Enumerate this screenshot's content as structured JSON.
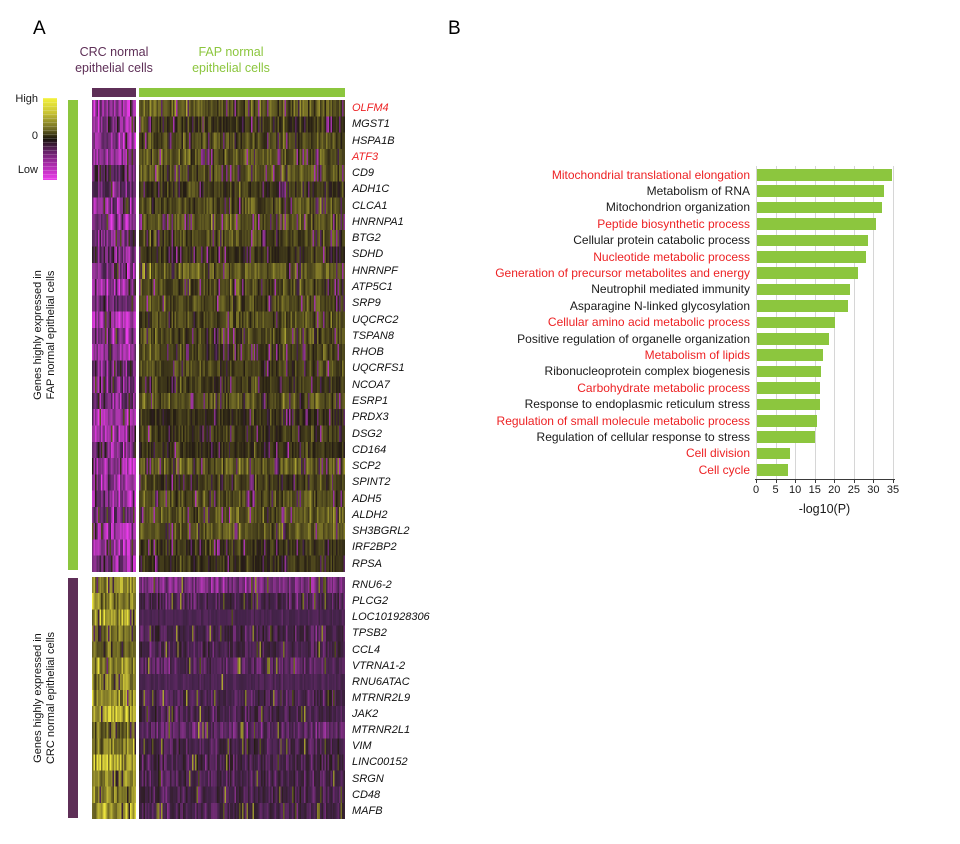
{
  "figure": {
    "panelA_label": "A",
    "panelB_label": "B"
  },
  "colors": {
    "green": "#8cc63e",
    "purple": "#5e2f57",
    "red_text": "#ed2224",
    "black_text": "#1a1a1a",
    "gridline": "#d6d6d6"
  },
  "chart_data": [
    {
      "type": "heatmap",
      "title": "Gene expression heatmap: CRC vs FAP normal epithelial cells",
      "column_groups": [
        {
          "label": "CRC normal\nepithelial cells",
          "color": "#5e2f57"
        },
        {
          "label": "FAP normal\nepithelial cells",
          "color": "#8cc63e"
        }
      ],
      "colorscale": {
        "high_label": "High",
        "zero_label": "0",
        "low_label": "Low",
        "high_color": "#ece43e",
        "zero_color": "#241c13",
        "low_color": "#e93be9"
      },
      "row_groups": [
        {
          "side_label": "Genes highly expressed in\nFAP normal epithelial cells",
          "bar_color": "#8cc63e",
          "pattern": "low (magenta) in CRC columns, high (olive/yellow) in FAP columns",
          "genes": [
            {
              "name": "OLFM4",
              "red": true
            },
            {
              "name": "MGST1",
              "red": false
            },
            {
              "name": "HSPA1B",
              "red": false
            },
            {
              "name": "ATF3",
              "red": true
            },
            {
              "name": "CD9",
              "red": false
            },
            {
              "name": "ADH1C",
              "red": false
            },
            {
              "name": "CLCA1",
              "red": false
            },
            {
              "name": "HNRNPA1",
              "red": false
            },
            {
              "name": "BTG2",
              "red": false
            },
            {
              "name": "SDHD",
              "red": false
            },
            {
              "name": "HNRNPF",
              "red": false
            },
            {
              "name": "ATP5C1",
              "red": false
            },
            {
              "name": "SRP9",
              "red": false
            },
            {
              "name": "UQCRC2",
              "red": false
            },
            {
              "name": "TSPAN8",
              "red": false
            },
            {
              "name": "RHOB",
              "red": false
            },
            {
              "name": "UQCRFS1",
              "red": false
            },
            {
              "name": "NCOA7",
              "red": false
            },
            {
              "name": "ESRP1",
              "red": false
            },
            {
              "name": "PRDX3",
              "red": false
            },
            {
              "name": "DSG2",
              "red": false
            },
            {
              "name": "CD164",
              "red": false
            },
            {
              "name": "SCP2",
              "red": false
            },
            {
              "name": "SPINT2",
              "red": false
            },
            {
              "name": "ADH5",
              "red": false
            },
            {
              "name": "ALDH2",
              "red": false
            },
            {
              "name": "SH3BGRL2",
              "red": false
            },
            {
              "name": "IRF2BP2",
              "red": false
            },
            {
              "name": "RPSA",
              "red": false
            }
          ]
        },
        {
          "side_label": "Genes highly expressed in\nCRC normal epithelial cells",
          "bar_color": "#5e2f57",
          "pattern": "high (yellow) in CRC columns, low (dark purple) in FAP columns",
          "genes": [
            {
              "name": "RNU6-2",
              "red": false
            },
            {
              "name": "PLCG2",
              "red": false
            },
            {
              "name": "LOC101928306",
              "red": false
            },
            {
              "name": "TPSB2",
              "red": false
            },
            {
              "name": "CCL4",
              "red": false
            },
            {
              "name": "VTRNA1-2",
              "red": false
            },
            {
              "name": "RNU6ATAC",
              "red": false
            },
            {
              "name": "MTRNR2L9",
              "red": false
            },
            {
              "name": "JAK2",
              "red": false
            },
            {
              "name": "MTRNR2L1",
              "red": false
            },
            {
              "name": "VIM",
              "red": false
            },
            {
              "name": "LINC00152",
              "red": false
            },
            {
              "name": "SRGN",
              "red": false
            },
            {
              "name": "CD48",
              "red": false
            },
            {
              "name": "MAFB",
              "red": false
            }
          ]
        }
      ]
    },
    {
      "type": "bar",
      "orientation": "horizontal",
      "title": "",
      "xlabel": "-log10(P)",
      "xlim": [
        0,
        35
      ],
      "xticks": [
        0,
        5,
        10,
        15,
        20,
        25,
        30,
        35
      ],
      "grid": true,
      "bar_color": "#8cc63e",
      "categories": [
        "Mitochondrial translational elongation",
        "Metabolism of RNA",
        "Mitochondrion organization",
        "Peptide biosynthetic process",
        "Cellular protein catabolic process",
        "Nucleotide metabolic process",
        "Generation of precursor metabolites and energy",
        "Neutrophil mediated immunity",
        "Asparagine N-linked glycosylation",
        "Cellular amino acid metabolic process",
        "Positive regulation of organelle organization",
        "Metabolism of lipids",
        "Ribonucleoprotein complex biogenesis",
        "Carbohydrate metabolic process",
        "Response to endoplasmic reticulum stress",
        "Regulation of small molecule metabolic process",
        "Regulation of cellular response to stress",
        "Cell division",
        "Cell cycle"
      ],
      "values": [
        34.5,
        32.5,
        32,
        30.5,
        28.5,
        28,
        26,
        24,
        23.5,
        20,
        18.5,
        17,
        16.5,
        16.3,
        16.3,
        15.5,
        15,
        8.5,
        8
      ],
      "red_labels": [
        true,
        false,
        false,
        true,
        false,
        true,
        true,
        false,
        false,
        true,
        false,
        true,
        false,
        true,
        false,
        true,
        false,
        true,
        true
      ]
    }
  ]
}
